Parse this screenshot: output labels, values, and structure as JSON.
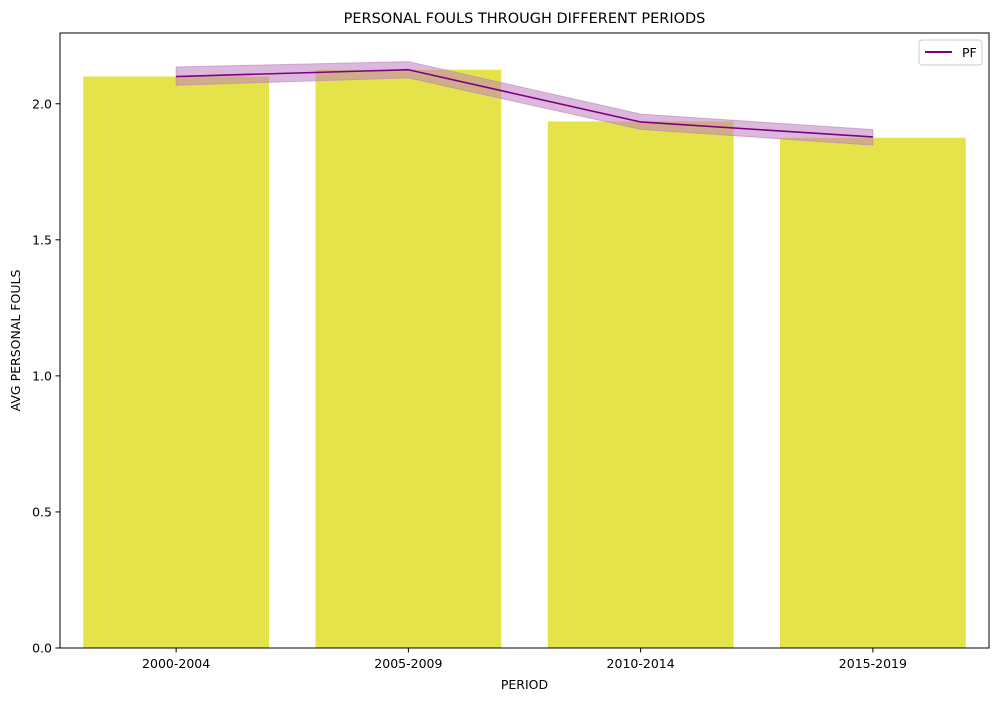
{
  "chart_data": {
    "type": "bar",
    "title": "PERSONAL FOULS THROUGH DIFFERENT PERIODS",
    "xlabel": "PERIOD",
    "ylabel": "AVG PERSONAL FOULS",
    "categories": [
      "2000-2004",
      "2005-2009",
      "2010-2014",
      "2015-2019"
    ],
    "ylim": [
      0,
      2.26
    ],
    "yticks": [
      0.0,
      0.5,
      1.0,
      1.5,
      2.0
    ],
    "ytick_labels": [
      "0.0",
      "0.5",
      "1.0",
      "1.5",
      "2.0"
    ],
    "grid": false,
    "legend_position": "top-right",
    "bars": {
      "values": [
        2.1,
        2.125,
        1.935,
        1.875
      ],
      "color": "#dfdf2a",
      "opacity": 0.85
    },
    "series": [
      {
        "name": "PF",
        "type": "line",
        "values": [
          2.1,
          2.125,
          1.933,
          1.878
        ],
        "ci_lower": [
          2.068,
          2.095,
          1.906,
          1.848
        ],
        "ci_upper": [
          2.135,
          2.155,
          1.962,
          1.905
        ],
        "color": "#800080",
        "ci_color": "#bf7fbf"
      }
    ]
  }
}
